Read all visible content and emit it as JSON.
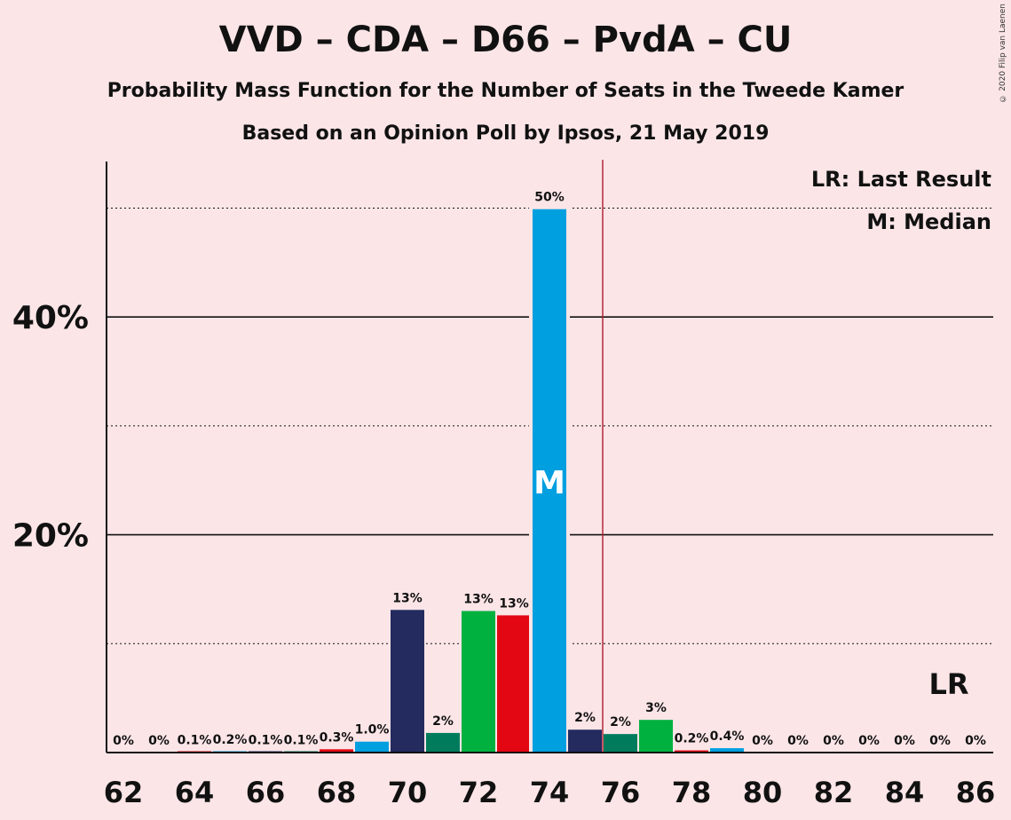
{
  "chart_data": {
    "type": "bar",
    "title": "VVD – CDA – D66 – PvdA – CU",
    "subtitle": "Probability Mass Function for the Number of Seats in the Tweede Kamer",
    "subtitle2": "Based on an Opinion Poll by Ipsos, 21 May 2019",
    "x": [
      62,
      63,
      64,
      65,
      66,
      67,
      68,
      69,
      70,
      71,
      72,
      73,
      74,
      75,
      76,
      77,
      78,
      79,
      80,
      81,
      82,
      83,
      84,
      85,
      86
    ],
    "values": [
      0,
      0,
      0.1,
      0.2,
      0.1,
      0.1,
      0.3,
      1.0,
      13,
      2,
      13,
      13,
      50,
      2,
      2,
      3,
      0.2,
      0.4,
      0,
      0,
      0,
      0,
      0,
      0,
      0
    ],
    "plot_values": [
      0,
      0,
      0.05,
      0.1,
      0.05,
      0.05,
      0.3,
      1.0,
      13.1,
      1.8,
      13.0,
      12.6,
      49.9,
      2.1,
      1.7,
      3.0,
      0.2,
      0.4,
      0,
      0,
      0,
      0,
      0,
      0,
      0
    ],
    "value_labels": [
      "0%",
      "0%",
      "0.1%",
      "0.2%",
      "0.1%",
      "0.1%",
      "0.3%",
      "1.0%",
      "13%",
      "2%",
      "13%",
      "13%",
      "50%",
      "2%",
      "2%",
      "3%",
      "0.2%",
      "0.4%",
      "0%",
      "0%",
      "0%",
      "0%",
      "0%",
      "0%",
      "0%"
    ],
    "bar_colors": [
      "#111111",
      "#111111",
      "#e30613",
      "#009fe0",
      "#232b5f",
      "#007c5c",
      "#e30613",
      "#009fe0",
      "#232b5f",
      "#007c5c",
      "#00b140",
      "#e30613",
      "#009fe0",
      "#232b5f",
      "#007c5c",
      "#00b140",
      "#e30613",
      "#009fe0",
      "#232b5f",
      "#007c5c",
      "#00b140",
      "#e30613",
      "#009fe0",
      "#232b5f",
      "#007c5c"
    ],
    "x_ticks": [
      "62",
      "64",
      "66",
      "68",
      "70",
      "72",
      "74",
      "76",
      "78",
      "80",
      "82",
      "84",
      "86"
    ],
    "y_ticks": [
      {
        "value": 20,
        "label": "20%"
      },
      {
        "value": 40,
        "label": "40%"
      }
    ],
    "ylim": [
      0,
      54
    ],
    "solid_gridlines": [
      20,
      40
    ],
    "dotted_gridlines": [
      10,
      30,
      50
    ],
    "median_seat": 74,
    "median_label": "M",
    "last_result_seat": 75.5,
    "last_result_line_color": "#b01c2e",
    "lr_marker_seat": 85,
    "lr_marker_label": "LR",
    "legend": [
      "LR: Last Result",
      "M: Median"
    ],
    "legend_position": "top-right"
  },
  "copyright": "© 2020 Filip van Laenen"
}
